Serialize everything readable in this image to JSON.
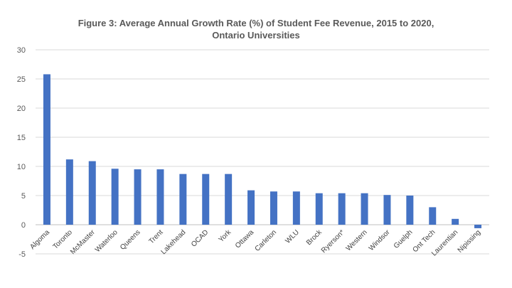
{
  "chart_data": {
    "type": "bar",
    "title": "Figure 3: Average Annual Growth Rate (%) of Student Fee Revenue, 2015 to 2020, Ontario Universities",
    "xlabel": "",
    "ylabel": "",
    "ylim": [
      -5,
      30
    ],
    "yticks": [
      -5,
      0,
      5,
      10,
      15,
      20,
      25,
      30
    ],
    "grid": true,
    "bar_color": "#4472c4",
    "categories": [
      "Algoma",
      "Toronto",
      "McMaster",
      "Waterloo",
      "Queens",
      "Trent",
      "Lakehead",
      "OCAD",
      "York",
      "Ottawa",
      "Carleton",
      "WLU",
      "Brock",
      "Ryerson*",
      "Western",
      "Windsor",
      "Guelph",
      "Ont Tech",
      "Laurentian",
      "Nipissing"
    ],
    "values": [
      25.8,
      11.2,
      10.9,
      9.6,
      9.5,
      9.5,
      8.7,
      8.7,
      8.7,
      5.9,
      5.7,
      5.7,
      5.4,
      5.4,
      5.4,
      5.1,
      5.0,
      3.0,
      1.0,
      -0.6
    ]
  }
}
